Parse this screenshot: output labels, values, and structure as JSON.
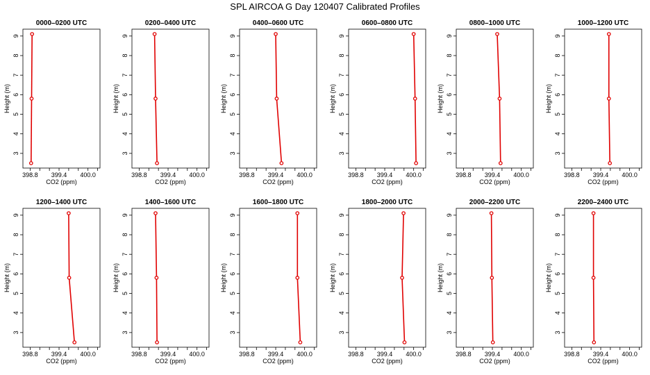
{
  "chart_data": {
    "type": "line",
    "title": "SPL AIRCOA G  Day 120407  Calibrated Profiles",
    "xlabel": "CO2 (ppm)",
    "ylabel": "Height (m)",
    "xlim": [
      398.65,
      400.25
    ],
    "ylim": [
      2.25,
      9.35
    ],
    "xticks": [
      398.8,
      399.0,
      399.2,
      399.4,
      399.6,
      399.8,
      400.0,
      400.2
    ],
    "xtick_labels": [
      "398.8",
      "",
      "",
      "399.4",
      "",
      "",
      "400.0",
      ""
    ],
    "yticks": [
      3,
      4,
      5,
      6,
      7,
      8,
      9
    ],
    "ytick_labels": [
      "3",
      "4",
      "5",
      "6",
      "7",
      "8",
      "9"
    ],
    "line_color": "#e00000",
    "heights": [
      9.1,
      5.8,
      2.5
    ],
    "panels": [
      {
        "title": "0000–0200 UTC",
        "co2": [
          398.84,
          398.83,
          398.82
        ]
      },
      {
        "title": "0200–0400 UTC",
        "co2": [
          399.12,
          399.14,
          399.17
        ]
      },
      {
        "title": "0400–0600 UTC",
        "co2": [
          399.4,
          399.42,
          399.52
        ]
      },
      {
        "title": "0600–0800 UTC",
        "co2": [
          400.0,
          400.03,
          400.05
        ]
      },
      {
        "title": "0800–1000 UTC",
        "co2": [
          399.5,
          399.55,
          399.57
        ]
      },
      {
        "title": "1000–1200 UTC",
        "co2": [
          399.57,
          399.57,
          399.59
        ]
      },
      {
        "title": "1200–1400 UTC",
        "co2": [
          399.6,
          399.61,
          399.72
        ]
      },
      {
        "title": "1400–1600 UTC",
        "co2": [
          399.14,
          399.16,
          399.17
        ]
      },
      {
        "title": "1600–1800 UTC",
        "co2": [
          399.85,
          399.85,
          399.91
        ]
      },
      {
        "title": "1800–2000 UTC",
        "co2": [
          399.79,
          399.76,
          399.81
        ]
      },
      {
        "title": "2000–2200 UTC",
        "co2": [
          399.38,
          399.39,
          399.41
        ]
      },
      {
        "title": "2200–2400 UTC",
        "co2": [
          399.25,
          399.25,
          399.26
        ]
      }
    ]
  }
}
